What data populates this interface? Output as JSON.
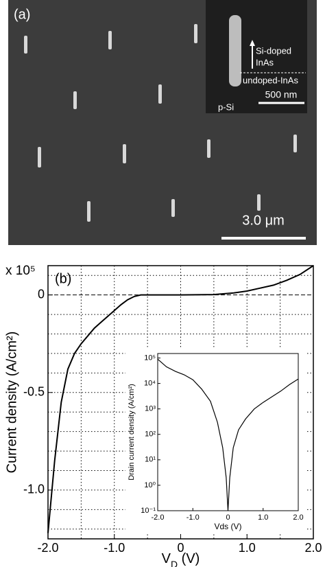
{
  "panel_a": {
    "label": "(a)",
    "scale_bar": "3.0 μm",
    "inset": {
      "doping_label": "Si-doped",
      "doping_material": "InAs",
      "undoped_label": "undoped-InAs",
      "scale_bar": "500 nm",
      "substrate": "p-Si"
    }
  },
  "chart_data": [
    {
      "type": "line",
      "panel_label": "(b)",
      "multiplier": "x 10⁵",
      "y_label": "Current density  (A/cm²)",
      "x_label": "V_D (V)",
      "x": [
        -2.0,
        -1.9,
        -1.8,
        -1.7,
        -1.6,
        -1.5,
        -1.4,
        -1.3,
        -1.2,
        -1.1,
        -1.0,
        -0.9,
        -0.8,
        -0.7,
        -0.6,
        -0.5,
        0,
        0.5,
        0.8,
        1.0,
        1.2,
        1.4,
        1.6,
        1.8,
        2.0
      ],
      "series": [
        {
          "color": "#000000",
          "values": [
            -1.22,
            -0.85,
            -0.55,
            -0.38,
            -0.3,
            -0.25,
            -0.21,
            -0.17,
            -0.14,
            -0.11,
            -0.08,
            -0.05,
            -0.025,
            -0.008,
            0,
            0,
            0,
            0.002,
            0.01,
            0.02,
            0.035,
            0.05,
            0.075,
            0.105,
            0.15
          ]
        }
      ],
      "xlim": [
        -2,
        2
      ],
      "xticks": [
        {
          "value": -2,
          "label": "-2.0"
        },
        {
          "value": -1,
          "label": "-1.0"
        },
        0,
        {
          "value": 1,
          "label": "1.0"
        },
        {
          "value": 2,
          "label": "2.0"
        }
      ],
      "ylim": [
        -1.25,
        0.15
      ],
      "yticks": [
        0,
        -0.5,
        {
          "value": -1,
          "label": "-1.0"
        }
      ],
      "grid": true,
      "xgrid": [
        -1.5,
        -1,
        -0.5,
        0,
        0.5,
        1,
        1.5
      ],
      "ygrid": [
        0.1,
        0,
        -0.1,
        -0.2,
        -0.3,
        -0.4,
        -0.5,
        -0.6,
        -0.7,
        -0.8,
        -0.9,
        -1,
        -1.1,
        -1.2
      ]
    },
    {
      "type": "line",
      "log_y": true,
      "y_label": "Drain current density (A/cm²)",
      "x_label": "Vds (V)",
      "x": [
        -2,
        -1.75,
        -1.5,
        -1.25,
        -1,
        -0.75,
        -0.5,
        -0.3,
        -0.15,
        -0.05,
        0,
        0.05,
        0.15,
        0.3,
        0.5,
        0.75,
        1,
        1.25,
        1.5,
        1.75,
        2
      ],
      "series": [
        {
          "color": "#000000",
          "values": [
            90000,
            45000,
            30000,
            22000,
            14000,
            6000,
            2000,
            300,
            30,
            2,
            0.1,
            2,
            30,
            150,
            400,
            1000,
            1800,
            3000,
            5000,
            9000,
            15000
          ]
        }
      ],
      "xlim": [
        -2,
        2
      ],
      "xticks": [
        {
          "value": -2,
          "label": "-2.0"
        },
        {
          "value": -1,
          "label": "-1.0"
        },
        0,
        {
          "value": 1,
          "label": "1.0"
        },
        {
          "value": 2,
          "label": "2.0"
        }
      ],
      "ylim": [
        0.1,
        150000
      ],
      "yticks": [
        {
          "value": 100000,
          "label": "10⁵"
        },
        {
          "value": 10000,
          "label": "10⁴"
        },
        {
          "value": 1000,
          "label": "10³"
        },
        {
          "value": 100,
          "label": "10²"
        },
        {
          "value": 10,
          "label": "10¹"
        },
        {
          "value": 1,
          "label": "10⁰"
        },
        {
          "value": 0.1,
          "label": "10⁻¹"
        }
      ],
      "grid": false
    }
  ]
}
